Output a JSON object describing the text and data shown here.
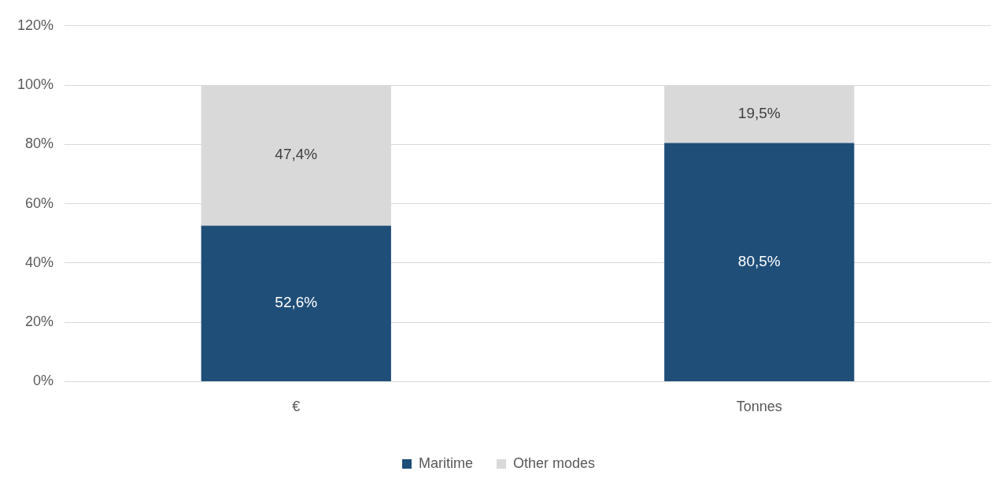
{
  "chart_data": {
    "type": "bar",
    "stacked": true,
    "categories": [
      "€",
      "Tonnes"
    ],
    "series": [
      {
        "name": "Maritime",
        "color": "#1f4e79",
        "values": [
          52.6,
          80.5
        ],
        "value_labels": [
          "52,6%",
          "80,5%"
        ]
      },
      {
        "name": "Other modes",
        "color": "#d9d9d9",
        "values": [
          47.4,
          19.5
        ],
        "value_labels": [
          "47,4%",
          "19,5%"
        ]
      }
    ],
    "ylim": [
      0,
      120
    ],
    "yticks": [
      {
        "value": 0,
        "label": "0%"
      },
      {
        "value": 20,
        "label": "20%"
      },
      {
        "value": 40,
        "label": "40%"
      },
      {
        "value": 60,
        "label": "60%"
      },
      {
        "value": 80,
        "label": "80%"
      },
      {
        "value": 100,
        "label": "100%"
      },
      {
        "value": 120,
        "label": "120%"
      }
    ],
    "grid": "y",
    "legend": "bottom"
  }
}
